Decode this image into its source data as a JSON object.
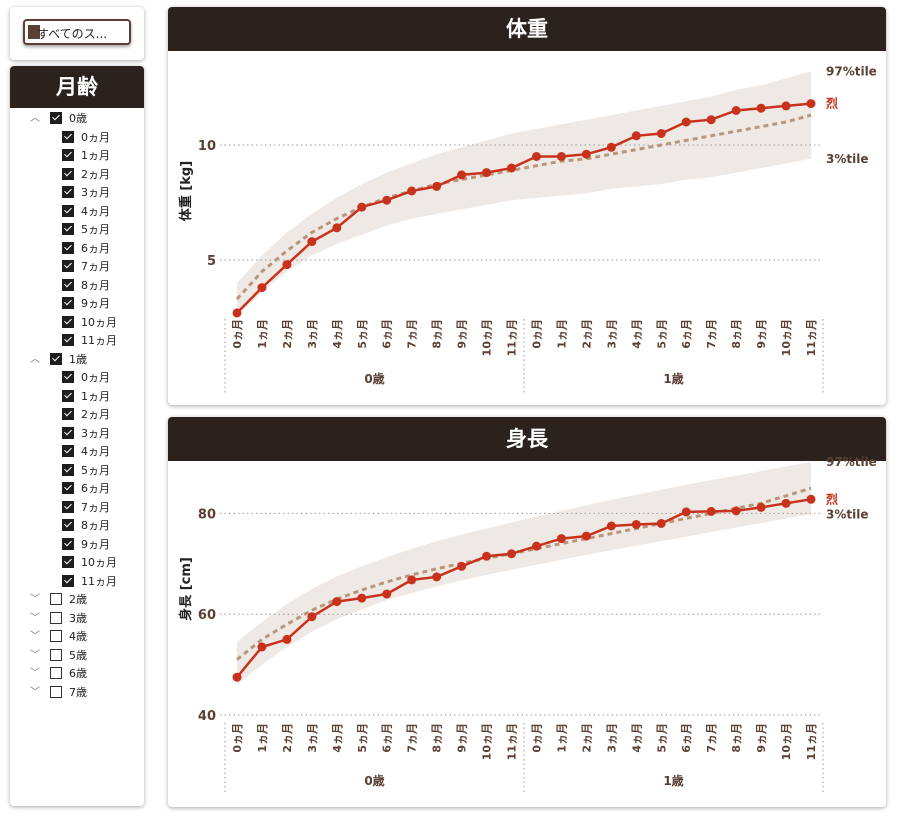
{
  "select_all_button": {
    "label": "すべてのス..."
  },
  "slicer": {
    "title": "月齢",
    "groups": [
      {
        "label": "0歳",
        "expanded": true,
        "checked": true,
        "items": [
          "0ヵ月",
          "1ヵ月",
          "2ヵ月",
          "3ヵ月",
          "4ヵ月",
          "5ヵ月",
          "6ヵ月",
          "7ヵ月",
          "8ヵ月",
          "9ヵ月",
          "10ヵ月",
          "11ヵ月"
        ]
      },
      {
        "label": "1歳",
        "expanded": true,
        "checked": true,
        "items": [
          "0ヵ月",
          "1ヵ月",
          "2ヵ月",
          "3ヵ月",
          "4ヵ月",
          "5ヵ月",
          "6ヵ月",
          "7ヵ月",
          "8ヵ月",
          "9ヵ月",
          "10ヵ月",
          "11ヵ月"
        ]
      },
      {
        "label": "2歳",
        "expanded": false,
        "checked": false,
        "items": []
      },
      {
        "label": "3歳",
        "expanded": false,
        "checked": false,
        "items": []
      },
      {
        "label": "4歳",
        "expanded": false,
        "checked": false,
        "items": []
      },
      {
        "label": "5歳",
        "expanded": false,
        "checked": false,
        "items": []
      },
      {
        "label": "6歳",
        "expanded": false,
        "checked": false,
        "items": []
      },
      {
        "label": "7歳",
        "expanded": false,
        "checked": false,
        "items": []
      }
    ]
  },
  "colors": {
    "header_bg": "#2b211d",
    "actual_line": "#c8321d",
    "median_dash": "#b9957a",
    "band_fill": "#efe9e5",
    "label_brown": "#5b4034",
    "grid": "#9a9a9a"
  },
  "chart_data": [
    {
      "type": "line",
      "title": "体重",
      "ylabel": "体重 [kg]",
      "ylim": [
        2,
        14
      ],
      "yticks": [
        5,
        10
      ],
      "x_months": [
        "0ヵ月",
        "1ヵ月",
        "2ヵ月",
        "3ヵ月",
        "4ヵ月",
        "5ヵ月",
        "6ヵ月",
        "7ヵ月",
        "8ヵ月",
        "9ヵ月",
        "10ヵ月",
        "11ヵ月",
        "0ヵ月",
        "1ヵ月",
        "2ヵ月",
        "3ヵ月",
        "4ヵ月",
        "5ヵ月",
        "6ヵ月",
        "7ヵ月",
        "8ヵ月",
        "9ヵ月",
        "10ヵ月",
        "11ヵ月"
      ],
      "x_years": [
        "0歳",
        "1歳"
      ],
      "band_upper": [
        4.0,
        5.2,
        6.2,
        7.0,
        7.7,
        8.3,
        8.8,
        9.2,
        9.6,
        9.9,
        10.2,
        10.5,
        10.7,
        10.9,
        11.1,
        11.3,
        11.5,
        11.7,
        11.9,
        12.1,
        12.4,
        12.6,
        12.9,
        13.2
      ],
      "band_lower": [
        2.6,
        3.6,
        4.5,
        5.2,
        5.7,
        6.1,
        6.5,
        6.8,
        7.0,
        7.2,
        7.4,
        7.6,
        7.7,
        7.8,
        7.9,
        8.1,
        8.2,
        8.3,
        8.5,
        8.6,
        8.8,
        9.0,
        9.2,
        9.4
      ],
      "series": [
        {
          "name": "烈",
          "values": [
            2.7,
            3.8,
            4.8,
            5.8,
            6.4,
            7.3,
            7.6,
            8.0,
            8.2,
            8.7,
            8.8,
            9.0,
            9.5,
            9.5,
            9.6,
            9.9,
            10.4,
            10.5,
            11.0,
            11.1,
            11.5,
            11.6,
            11.7,
            11.8
          ]
        },
        {
          "name": "",
          "dashed": true,
          "values": [
            3.3,
            4.5,
            5.4,
            6.2,
            6.8,
            7.3,
            7.7,
            8.0,
            8.3,
            8.5,
            8.7,
            8.9,
            9.1,
            9.3,
            9.4,
            9.6,
            9.8,
            10.0,
            10.2,
            10.4,
            10.6,
            10.8,
            11.0,
            11.3
          ]
        }
      ],
      "right_labels": {
        "top": "97%tile",
        "name": "烈",
        "bottom": "3%tile"
      }
    },
    {
      "type": "line",
      "title": "身長",
      "ylabel": "身長 [cm]",
      "ylim": [
        40,
        90
      ],
      "yticks": [
        40,
        60,
        80
      ],
      "x_months": [
        "0ヵ月",
        "1ヵ月",
        "2ヵ月",
        "3ヵ月",
        "4ヵ月",
        "5ヵ月",
        "6ヵ月",
        "7ヵ月",
        "8ヵ月",
        "9ヵ月",
        "10ヵ月",
        "11ヵ月",
        "0ヵ月",
        "1ヵ月",
        "2ヵ月",
        "3ヵ月",
        "4ヵ月",
        "5ヵ月",
        "6ヵ月",
        "7ヵ月",
        "8ヵ月",
        "9ヵ月",
        "10ヵ月",
        "11ヵ月"
      ],
      "x_years": [
        "0歳",
        "1歳"
      ],
      "band_upper": [
        54.5,
        58.5,
        62.0,
        65.0,
        67.5,
        69.5,
        71.3,
        73.0,
        74.5,
        75.8,
        77.0,
        78.2,
        79.4,
        80.5,
        81.6,
        82.7,
        83.7,
        84.7,
        85.7,
        86.6,
        87.5,
        88.4,
        89.3,
        90.2
      ],
      "band_lower": [
        46.0,
        50.0,
        53.5,
        56.5,
        59.0,
        61.0,
        62.8,
        64.2,
        65.5,
        66.7,
        67.8,
        68.8,
        69.8,
        70.8,
        71.8,
        72.7,
        73.6,
        74.5,
        75.4,
        76.3,
        77.2,
        78.1,
        79.0,
        79.8
      ],
      "series": [
        {
          "name": "烈",
          "values": [
            47.5,
            53.5,
            55.0,
            59.5,
            62.5,
            63.2,
            64.0,
            66.8,
            67.4,
            69.5,
            71.5,
            72.0,
            73.5,
            75.0,
            75.5,
            77.5,
            77.8,
            78.0,
            80.3,
            80.4,
            80.5,
            81.2,
            82.0,
            82.8
          ]
        },
        {
          "name": "",
          "dashed": true,
          "values": [
            51.0,
            55.0,
            58.0,
            60.8,
            63.0,
            64.8,
            66.4,
            67.8,
            69.0,
            70.1,
            71.1,
            72.0,
            73.0,
            74.0,
            75.0,
            76.0,
            77.0,
            78.0,
            79.0,
            80.0,
            81.0,
            82.0,
            83.5,
            85.0
          ]
        }
      ],
      "right_labels": {
        "top": "97%tile",
        "name": "烈",
        "bottom": "3%tile"
      }
    }
  ]
}
